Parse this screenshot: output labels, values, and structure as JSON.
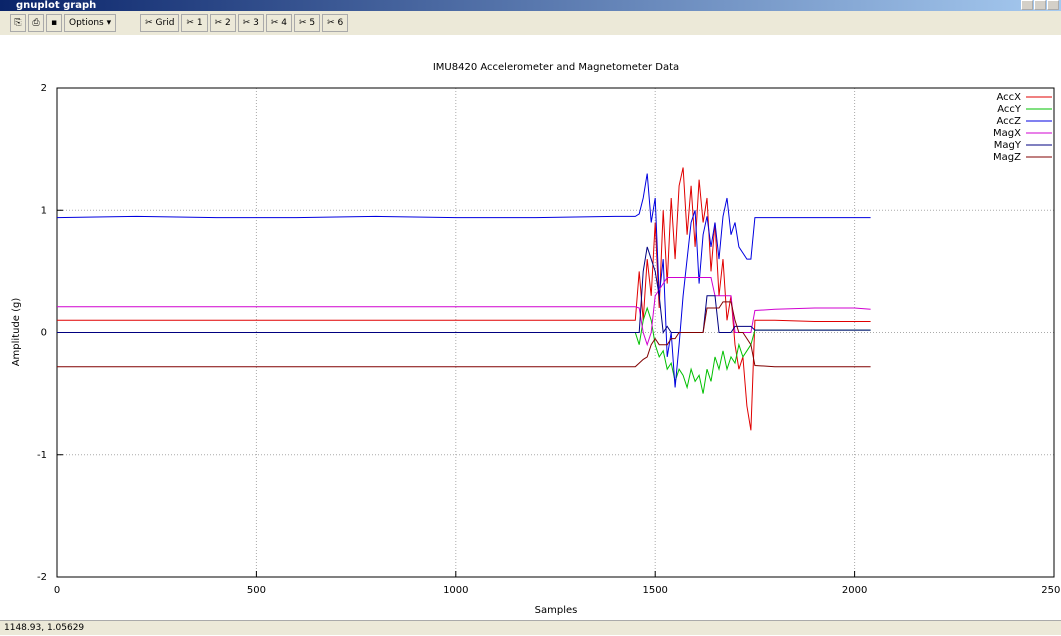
{
  "window": {
    "title": "gnuplot graph",
    "toolbar": {
      "options": "Options",
      "buttons": [
        "Grid",
        "1",
        "2",
        "3",
        "4",
        "5",
        "6"
      ]
    },
    "status": "1148.93, 1.05629"
  },
  "chart_data": {
    "type": "line",
    "title": "IMU8420 Accelerometer and Magnetometer Data",
    "x_label": "Samples",
    "y_label": "Amplitude (g)",
    "xlim": [
      0,
      2500
    ],
    "xticks": [
      0,
      500,
      1000,
      1500,
      2000,
      2500
    ],
    "ylim": [
      -2,
      2
    ],
    "yticks": [
      -2,
      -1,
      0,
      1,
      2
    ],
    "grid": true,
    "legend": "top-right",
    "x": [
      0,
      200,
      400,
      600,
      800,
      1000,
      1200,
      1400,
      1450,
      1460,
      1470,
      1480,
      1490,
      1500,
      1510,
      1520,
      1530,
      1540,
      1550,
      1560,
      1570,
      1580,
      1590,
      1600,
      1610,
      1620,
      1630,
      1640,
      1650,
      1660,
      1670,
      1680,
      1690,
      1700,
      1710,
      1720,
      1730,
      1740,
      1750,
      1800,
      1900,
      2000,
      2040
    ],
    "series": [
      {
        "name": "AccX",
        "color": "#e00000",
        "values": [
          0.1,
          0.1,
          0.1,
          0.1,
          0.1,
          0.1,
          0.1,
          0.1,
          0.1,
          0.5,
          0.1,
          0.6,
          0.3,
          0.9,
          0.2,
          1.0,
          0.4,
          1.1,
          0.6,
          1.2,
          1.35,
          0.8,
          1.2,
          0.7,
          1.25,
          0.9,
          1.1,
          0.5,
          0.9,
          0.3,
          0.6,
          0.1,
          0.3,
          -0.1,
          -0.3,
          -0.2,
          -0.6,
          -0.8,
          0.1,
          0.1,
          0.09,
          0.09,
          0.09
        ]
      },
      {
        "name": "AccY",
        "color": "#00c000",
        "values": [
          0.0,
          0.0,
          0.0,
          0.0,
          0.0,
          0.0,
          0.0,
          0.0,
          0.0,
          -0.1,
          0.1,
          0.2,
          0.1,
          -0.1,
          -0.2,
          -0.15,
          -0.3,
          -0.25,
          -0.4,
          -0.3,
          -0.35,
          -0.45,
          -0.3,
          -0.4,
          -0.35,
          -0.5,
          -0.3,
          -0.4,
          -0.2,
          -0.3,
          -0.15,
          -0.3,
          -0.2,
          -0.25,
          -0.1,
          -0.2,
          -0.15,
          -0.1,
          0.02,
          0.02,
          0.02,
          0.02,
          0.02
        ]
      },
      {
        "name": "AccZ",
        "color": "#0000e0",
        "values": [
          0.94,
          0.95,
          0.94,
          0.94,
          0.95,
          0.94,
          0.94,
          0.95,
          0.95,
          0.97,
          1.1,
          1.3,
          0.9,
          1.1,
          0.3,
          0.6,
          -0.2,
          0.0,
          -0.45,
          -0.1,
          0.3,
          0.6,
          0.9,
          1.0,
          0.4,
          0.8,
          0.95,
          0.7,
          0.9,
          0.6,
          0.95,
          1.1,
          0.8,
          0.9,
          0.7,
          0.65,
          0.6,
          0.6,
          0.94,
          0.94,
          0.94,
          0.94,
          0.94
        ]
      },
      {
        "name": "MagX",
        "color": "#d000d0",
        "values": [
          0.21,
          0.21,
          0.21,
          0.21,
          0.21,
          0.21,
          0.21,
          0.21,
          0.21,
          0.2,
          0.0,
          -0.1,
          0.0,
          0.3,
          0.35,
          0.4,
          0.45,
          0.45,
          0.45,
          0.45,
          0.45,
          0.45,
          0.45,
          0.45,
          0.45,
          0.45,
          0.45,
          0.45,
          0.3,
          0.3,
          0.3,
          0.3,
          0.3,
          0.0,
          0.0,
          0.0,
          0.0,
          0.0,
          0.18,
          0.19,
          0.2,
          0.2,
          0.19
        ]
      },
      {
        "name": "MagY",
        "color": "#000080",
        "values": [
          0.0,
          0.0,
          0.0,
          0.0,
          0.0,
          0.0,
          0.0,
          0.0,
          0.0,
          0.0,
          0.5,
          0.7,
          0.6,
          0.5,
          0.3,
          0.0,
          0.05,
          0.0,
          0.0,
          0.0,
          0.0,
          0.0,
          0.0,
          0.0,
          0.0,
          0.0,
          0.3,
          0.3,
          0.3,
          0.0,
          0.0,
          0.0,
          0.0,
          0.05,
          0.05,
          0.05,
          0.05,
          0.05,
          0.02,
          0.02,
          0.02,
          0.02,
          0.02
        ]
      },
      {
        "name": "MagZ",
        "color": "#800000",
        "values": [
          -0.28,
          -0.28,
          -0.28,
          -0.28,
          -0.28,
          -0.28,
          -0.28,
          -0.28,
          -0.28,
          -0.25,
          -0.22,
          -0.2,
          -0.1,
          -0.05,
          -0.1,
          -0.1,
          -0.1,
          -0.05,
          -0.05,
          0.0,
          0.0,
          0.0,
          0.0,
          0.0,
          0.0,
          0.0,
          0.2,
          0.2,
          0.2,
          0.2,
          0.25,
          0.25,
          0.25,
          0.1,
          0.0,
          0.0,
          -0.05,
          -0.1,
          -0.27,
          -0.28,
          -0.28,
          -0.28,
          -0.28
        ]
      }
    ]
  }
}
